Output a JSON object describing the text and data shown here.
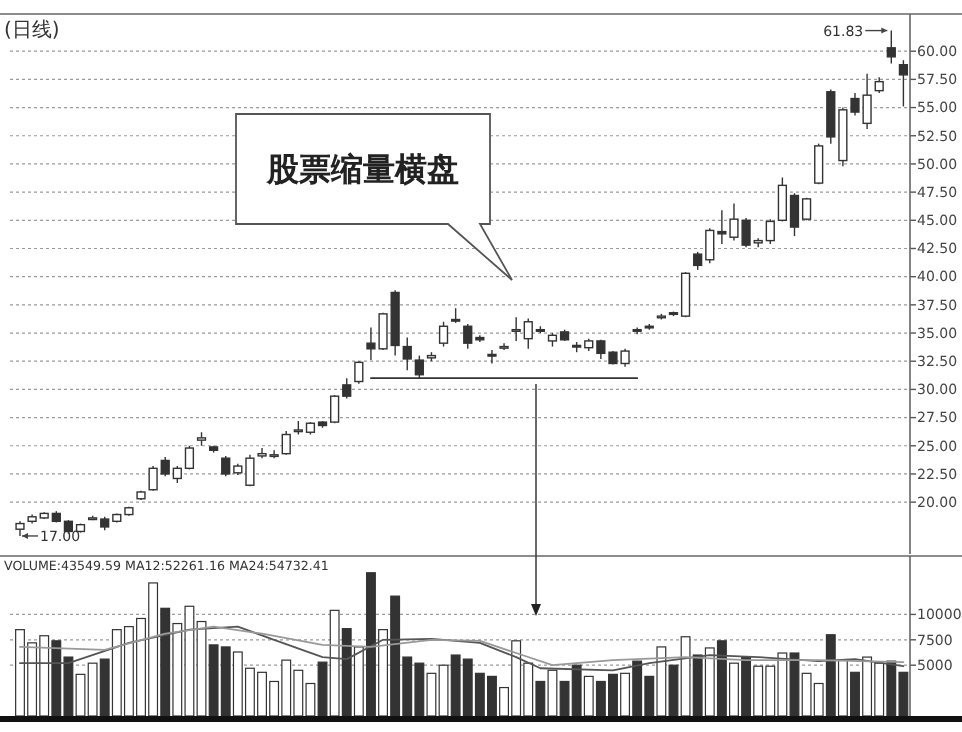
{
  "chart_data": [
    {
      "type": "candlestick",
      "title": "(日线)",
      "categories": [
        null,
        null,
        null,
        null,
        null,
        null,
        null,
        null,
        null,
        null,
        null,
        null,
        null,
        null,
        null,
        null,
        null,
        null,
        null,
        null,
        null,
        null,
        null,
        null,
        null,
        null,
        null,
        null,
        null,
        null,
        null,
        null,
        null,
        null,
        null,
        null,
        null,
        null,
        null,
        null,
        null,
        null,
        null,
        null,
        null,
        null,
        null,
        null,
        null,
        null,
        null,
        null,
        null,
        null,
        null,
        null,
        null,
        null,
        null,
        null,
        null,
        null,
        null,
        null,
        null,
        null,
        null,
        null,
        null,
        null,
        null,
        null,
        null,
        null
      ],
      "ohlc": [
        [
          17.6,
          18.3,
          17.0,
          18.1
        ],
        [
          18.3,
          18.9,
          18.1,
          18.7
        ],
        [
          18.6,
          19.1,
          18.5,
          19.0
        ],
        [
          19.0,
          19.2,
          18.2,
          18.3
        ],
        [
          18.3,
          18.4,
          17.2,
          17.4
        ],
        [
          17.4,
          18.1,
          17.3,
          18.0
        ],
        [
          18.5,
          18.8,
          18.4,
          18.6
        ],
        [
          18.5,
          18.7,
          17.5,
          17.8
        ],
        [
          18.3,
          19.0,
          18.2,
          18.9
        ],
        [
          18.9,
          19.6,
          18.8,
          19.5
        ],
        [
          20.3,
          21.0,
          20.2,
          20.9
        ],
        [
          21.1,
          23.2,
          21.0,
          23.0
        ],
        [
          23.7,
          24.0,
          22.3,
          22.5
        ],
        [
          22.1,
          23.2,
          21.7,
          23.0
        ],
        [
          23.0,
          25.0,
          22.9,
          24.8
        ],
        [
          25.5,
          26.2,
          25.0,
          25.7
        ],
        [
          24.9,
          25.0,
          24.4,
          24.6
        ],
        [
          23.9,
          24.1,
          22.3,
          22.5
        ],
        [
          22.6,
          23.4,
          22.4,
          23.2
        ],
        [
          21.5,
          24.2,
          21.4,
          23.9
        ],
        [
          24.1,
          24.8,
          23.9,
          24.3
        ],
        [
          24.1,
          24.6,
          23.9,
          24.2
        ],
        [
          24.3,
          26.3,
          24.2,
          26.0
        ],
        [
          26.3,
          27.2,
          26.0,
          26.4
        ],
        [
          26.2,
          27.1,
          26.0,
          27.0
        ],
        [
          27.1,
          27.2,
          26.6,
          26.8
        ],
        [
          27.1,
          29.5,
          27.0,
          29.4
        ],
        [
          30.4,
          31.0,
          29.2,
          29.4
        ],
        [
          30.7,
          32.5,
          30.5,
          32.4
        ],
        [
          34.1,
          35.5,
          32.6,
          33.6
        ],
        [
          33.6,
          36.8,
          33.5,
          36.7
        ],
        [
          38.6,
          38.8,
          33.0,
          33.9
        ],
        [
          33.8,
          34.6,
          31.7,
          32.7
        ],
        [
          32.6,
          33.0,
          31.0,
          31.3
        ],
        [
          32.8,
          33.3,
          32.5,
          33.0
        ],
        [
          34.1,
          36.0,
          33.8,
          35.6
        ],
        [
          36.2,
          37.2,
          35.9,
          36.1
        ],
        [
          35.6,
          35.8,
          33.6,
          34.1
        ],
        [
          34.6,
          34.8,
          34.2,
          34.4
        ],
        [
          33.1,
          33.5,
          32.3,
          33.0
        ],
        [
          33.7,
          34.1,
          33.5,
          33.8
        ],
        [
          35.2,
          36.4,
          34.3,
          35.3
        ],
        [
          34.5,
          36.3,
          33.6,
          36.0
        ],
        [
          35.3,
          35.6,
          35.0,
          35.2
        ],
        [
          34.3,
          35.0,
          33.8,
          34.8
        ],
        [
          35.1,
          35.3,
          34.3,
          34.4
        ],
        [
          33.9,
          34.2,
          33.3,
          33.8
        ],
        [
          33.7,
          34.5,
          33.4,
          34.3
        ],
        [
          34.3,
          34.4,
          32.7,
          33.2
        ],
        [
          33.3,
          33.4,
          32.2,
          32.3
        ],
        [
          32.3,
          33.6,
          32.0,
          33.4
        ],
        [
          35.3,
          35.5,
          34.9,
          35.2
        ],
        [
          35.6,
          35.8,
          35.3,
          35.5
        ],
        [
          36.4,
          36.7,
          36.2,
          36.5
        ],
        [
          36.8,
          36.9,
          36.5,
          36.7
        ],
        [
          36.5,
          40.4,
          36.4,
          40.3
        ],
        [
          42.0,
          42.2,
          40.6,
          41.0
        ],
        [
          41.5,
          44.3,
          41.2,
          44.1
        ],
        [
          44.0,
          45.9,
          42.9,
          43.8
        ],
        [
          43.5,
          46.5,
          43.2,
          45.1
        ],
        [
          45.0,
          45.2,
          42.6,
          42.8
        ],
        [
          43.0,
          43.4,
          42.6,
          43.2
        ],
        [
          43.2,
          45.1,
          42.9,
          44.9
        ],
        [
          45.0,
          48.8,
          44.9,
          48.1
        ],
        [
          47.2,
          47.4,
          43.6,
          44.4
        ],
        [
          45.1,
          47.0,
          45.0,
          46.9
        ],
        [
          48.3,
          51.8,
          48.2,
          51.6
        ],
        [
          56.4,
          56.6,
          51.8,
          52.4
        ],
        [
          50.3,
          55.0,
          49.8,
          54.8
        ],
        [
          55.8,
          56.3,
          54.3,
          54.6
        ],
        [
          53.6,
          58.0,
          53.1,
          56.1
        ],
        [
          56.5,
          57.7,
          56.3,
          57.3
        ],
        [
          60.3,
          61.83,
          58.9,
          59.5
        ],
        [
          58.8,
          59.2,
          55.1,
          57.9
        ]
      ],
      "series": [
        {
          "type": "line",
          "values": [
            null,
            null,
            null,
            null,
            null,
            null,
            null,
            null,
            null,
            null,
            null,
            null,
            null,
            null,
            null,
            null,
            null,
            null,
            null,
            null,
            null,
            null,
            null,
            null,
            null,
            null,
            null,
            null,
            null,
            31.0,
            null,
            null,
            null,
            null,
            null,
            null,
            null,
            null,
            null,
            null,
            null,
            null,
            null,
            null,
            null,
            null,
            null,
            null,
            null,
            null,
            null,
            31.0,
            null,
            null,
            null,
            null,
            null,
            null,
            null,
            null,
            null,
            null,
            null,
            null,
            null,
            null,
            null,
            null,
            null,
            null,
            null,
            null,
            null,
            null
          ],
          "color": "#333333"
        }
      ],
      "ylim": [
        15.4,
        63.3
      ],
      "yticks": [
        {
          "value": 20,
          "label": "20.00"
        },
        {
          "value": 22.5,
          "label": "22.50"
        },
        {
          "value": 25,
          "label": "25.00"
        },
        {
          "value": 27.5,
          "label": "27.50"
        },
        {
          "value": 30,
          "label": "30.00"
        },
        {
          "value": 32.5,
          "label": "32.50"
        },
        {
          "value": 35,
          "label": "35.00"
        },
        {
          "value": 37.5,
          "label": "37.50"
        },
        {
          "value": 40,
          "label": "40.00"
        },
        {
          "value": 42.5,
          "label": "42.50"
        },
        {
          "value": 45,
          "label": "45.00"
        },
        {
          "value": 47.5,
          "label": "47.50"
        },
        {
          "value": 50,
          "label": "50.00"
        },
        {
          "value": 52.5,
          "label": "52.50"
        },
        {
          "value": 55,
          "label": "55.00"
        },
        {
          "value": 57.5,
          "label": "57.50"
        },
        {
          "value": 60,
          "label": "60.00"
        }
      ],
      "grid": "y",
      "tick_labels": "y",
      "annotations": [
        "股票缩量横盘",
        "61.83",
        "17.00"
      ]
    },
    {
      "type": "bar",
      "title": "VOLUME:43549.59 MA12:52261.16 MA24:54732.41",
      "categories": [
        null,
        null,
        null,
        null,
        null,
        null,
        null,
        null,
        null,
        null,
        null,
        null,
        null,
        null,
        null,
        null,
        null,
        null,
        null,
        null,
        null,
        null,
        null,
        null,
        null,
        null,
        null,
        null,
        null,
        null,
        null,
        null,
        null,
        null,
        null,
        null,
        null,
        null,
        null,
        null,
        null,
        null,
        null,
        null,
        null,
        null,
        null,
        null,
        null,
        null,
        null,
        null,
        null,
        null,
        null,
        null,
        null,
        null,
        null,
        null,
        null,
        null,
        null,
        null,
        null,
        null,
        null,
        null,
        null,
        null,
        null,
        null,
        null,
        null
      ],
      "series": [
        {
          "values": [
            8500,
            7200,
            7900,
            7400,
            5800,
            4100,
            5200,
            5600,
            8500,
            8800,
            9600,
            13100,
            10600,
            9100,
            10800,
            9300,
            7000,
            6800,
            6300,
            4700,
            4300,
            3400,
            5500,
            4500,
            3200,
            5300,
            10400,
            8600,
            6800,
            14100,
            8500,
            11800,
            5800,
            5200,
            4200,
            5000,
            6000,
            5600,
            4200,
            3900,
            2800,
            7400,
            5200,
            3400,
            4500,
            3400,
            5000,
            3900,
            3400,
            4100,
            4200,
            5400,
            3900,
            6800,
            5000,
            7800,
            6000,
            6700,
            7400,
            5200,
            5800,
            4900,
            4900,
            6200,
            6200,
            4200,
            3200,
            8000,
            5500,
            4300,
            5800,
            5200,
            5400,
            4300
          ],
          "colors": [
            "#ffffff",
            "#ffffff",
            "#ffffff",
            "#333333",
            "#333333",
            "#ffffff",
            "#ffffff",
            "#333333",
            "#ffffff",
            "#ffffff",
            "#ffffff",
            "#ffffff",
            "#333333",
            "#ffffff",
            "#ffffff",
            "#ffffff",
            "#333333",
            "#333333",
            "#ffffff",
            "#ffffff",
            "#ffffff",
            "#ffffff",
            "#ffffff",
            "#ffffff",
            "#ffffff",
            "#333333",
            "#ffffff",
            "#333333",
            "#ffffff",
            "#333333",
            "#ffffff",
            "#333333",
            "#333333",
            "#333333",
            "#ffffff",
            "#ffffff",
            "#333333",
            "#333333",
            "#333333",
            "#333333",
            "#ffffff",
            "#ffffff",
            "#ffffff",
            "#333333",
            "#ffffff",
            "#333333",
            "#333333",
            "#ffffff",
            "#333333",
            "#333333",
            "#ffffff",
            "#333333",
            "#333333",
            "#ffffff",
            "#333333",
            "#ffffff",
            "#333333",
            "#ffffff",
            "#333333",
            "#ffffff",
            "#333333",
            "#ffffff",
            "#ffffff",
            "#ffffff",
            "#333333",
            "#ffffff",
            "#ffffff",
            "#333333",
            "#ffffff",
            "#333333",
            "#ffffff",
            "#ffffff",
            "#333333",
            "#333333"
          ]
        },
        {
          "type": "line",
          "color": "#555555",
          "values": [
            5200,
            null,
            null,
            null,
            5200,
            null,
            null,
            null,
            null,
            7200,
            null,
            null,
            null,
            null,
            8500,
            null,
            null,
            null,
            8800,
            null,
            null,
            7500,
            null,
            null,
            null,
            5800,
            null,
            5600,
            null,
            null,
            7500,
            null,
            null,
            null,
            7600,
            null,
            null,
            null,
            7200,
            null,
            null,
            5800,
            null,
            4700,
            null,
            null,
            null,
            null,
            null,
            4500,
            null,
            null,
            5200,
            null,
            null,
            null,
            null,
            6000,
            null,
            null,
            null,
            5800,
            null,
            null,
            null,
            null,
            5400,
            null,
            null,
            5600,
            null,
            null,
            null,
            4900
          ]
        },
        {
          "type": "line",
          "color": "#999999",
          "values": [
            6800,
            null,
            null,
            null,
            null,
            null,
            null,
            6500,
            null,
            null,
            null,
            null,
            8100,
            null,
            null,
            null,
            8800,
            null,
            null,
            null,
            8100,
            null,
            null,
            null,
            null,
            7000,
            null,
            null,
            null,
            6800,
            null,
            null,
            null,
            null,
            7500,
            null,
            null,
            null,
            7400,
            null,
            null,
            6200,
            null,
            null,
            5000,
            null,
            null,
            null,
            null,
            5500,
            null,
            null,
            null,
            null,
            null,
            5800,
            null,
            null,
            null,
            null,
            5500,
            null,
            null,
            null,
            null,
            null,
            5500,
            null,
            null,
            null,
            null,
            null,
            null,
            5300
          ]
        }
      ],
      "ylim": [
        0,
        15750
      ],
      "yticks": [
        5000,
        7500,
        10000
      ],
      "grid": "y",
      "tick_labels": "y"
    }
  ]
}
